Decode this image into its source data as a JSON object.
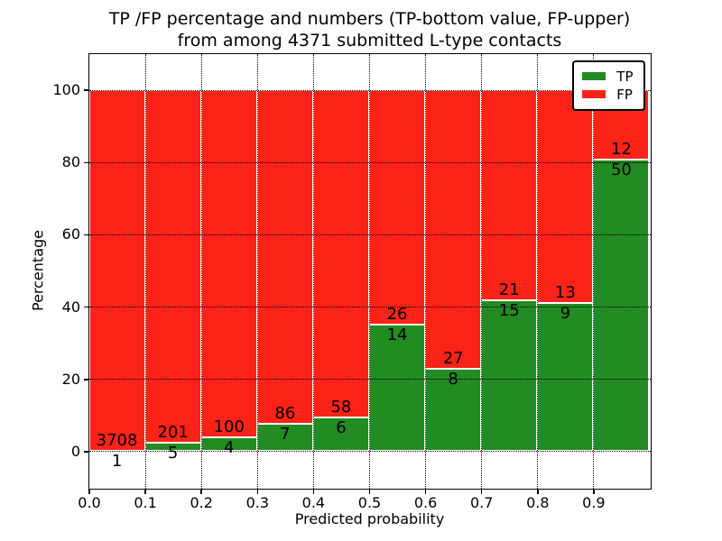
{
  "title": {
    "line1": "TP /FP percentage and numbers (TP-bottom value, FP-upper)",
    "line2": "from among 4371 submitted L-type contacts"
  },
  "axes": {
    "xlabel": "Predicted probability",
    "ylabel": "Percentage"
  },
  "legend": {
    "items": [
      {
        "label": "TP",
        "color": "#228B22"
      },
      {
        "label": "FP",
        "color": "#FB2318"
      }
    ]
  },
  "chart_data": {
    "type": "bar",
    "variant": "stacked-normalized-percent",
    "title": "TP /FP percentage and numbers (TP-bottom value, FP-upper) from among 4371 submitted L-type contacts",
    "xlabel": "Predicted probability",
    "ylabel": "Percentage",
    "total_contacts": 4371,
    "xlim": [
      0.0,
      1.0
    ],
    "ylim": [
      -10,
      110
    ],
    "grid": "dotted-black-on-top",
    "legend_position": "upper-right",
    "x_ticks": [
      {
        "v": 0.0,
        "label": "0.0"
      },
      {
        "v": 0.1,
        "label": "0.1"
      },
      {
        "v": 0.2,
        "label": "0.2"
      },
      {
        "v": 0.3,
        "label": "0.3"
      },
      {
        "v": 0.4,
        "label": "0.4"
      },
      {
        "v": 0.5,
        "label": "0.5"
      },
      {
        "v": 0.6,
        "label": "0.6"
      },
      {
        "v": 0.7,
        "label": "0.7"
      },
      {
        "v": 0.8,
        "label": "0.8"
      },
      {
        "v": 0.9,
        "label": "0.9"
      }
    ],
    "y_ticks": [
      {
        "v": 0,
        "label": "0"
      },
      {
        "v": 20,
        "label": "20"
      },
      {
        "v": 40,
        "label": "40"
      },
      {
        "v": 60,
        "label": "60"
      },
      {
        "v": 80,
        "label": "80"
      },
      {
        "v": 100,
        "label": "100"
      }
    ],
    "x_gridlines": [
      0.1,
      0.2,
      0.3,
      0.4,
      0.5,
      0.6,
      0.7,
      0.8,
      0.9
    ],
    "series": [
      {
        "name": "TP",
        "color": "#228B22"
      },
      {
        "name": "FP",
        "color": "#FB2318"
      }
    ],
    "bins": [
      {
        "x0": 0.0,
        "x1": 0.1,
        "tp": 1,
        "fp": 3708,
        "tp_pct": 0.03
      },
      {
        "x0": 0.1,
        "x1": 0.2,
        "tp": 5,
        "fp": 201,
        "tp_pct": 2.43
      },
      {
        "x0": 0.2,
        "x1": 0.3,
        "tp": 4,
        "fp": 100,
        "tp_pct": 3.85
      },
      {
        "x0": 0.3,
        "x1": 0.4,
        "tp": 7,
        "fp": 86,
        "tp_pct": 7.53
      },
      {
        "x0": 0.4,
        "x1": 0.5,
        "tp": 6,
        "fp": 58,
        "tp_pct": 9.38
      },
      {
        "x0": 0.5,
        "x1": 0.6,
        "tp": 14,
        "fp": 26,
        "tp_pct": 35.0
      },
      {
        "x0": 0.6,
        "x1": 0.7,
        "tp": 8,
        "fp": 27,
        "tp_pct": 22.86
      },
      {
        "x0": 0.7,
        "x1": 0.8,
        "tp": 15,
        "fp": 21,
        "tp_pct": 41.67
      },
      {
        "x0": 0.8,
        "x1": 0.9,
        "tp": 9,
        "fp": 13,
        "tp_pct": 40.91
      },
      {
        "x0": 0.9,
        "x1": 1.0,
        "tp": 50,
        "fp": 12,
        "tp_pct": 80.65
      }
    ]
  }
}
